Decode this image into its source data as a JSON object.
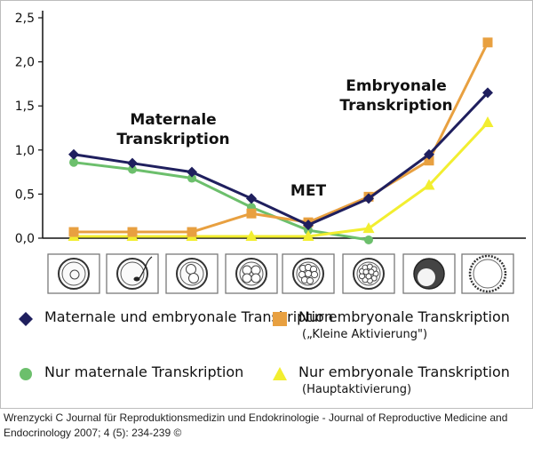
{
  "chart_data": {
    "type": "line",
    "x": [
      1,
      2,
      3,
      4,
      5,
      6,
      7,
      8
    ],
    "ylim": [
      0,
      2.5
    ],
    "yticks": [
      "0,0",
      "0,5",
      "1,0",
      "1,5",
      "2,0",
      "2,5"
    ],
    "ytick_values": [
      0,
      0.5,
      1,
      1.5,
      2,
      2.5
    ],
    "series": [
      {
        "name": "Maternale und embryonale Transkription",
        "marker": "diamond",
        "color": "#1f1f5e",
        "values": [
          0.95,
          0.85,
          0.75,
          0.45,
          0.15,
          0.45,
          0.95,
          1.65
        ]
      },
      {
        "name": "Nur embryonale Transkription",
        "note": "(„Kleine Aktivierung\")",
        "marker": "square",
        "color": "#e8a040",
        "values": [
          0.07,
          0.07,
          0.07,
          0.28,
          0.18,
          0.47,
          0.88,
          2.22
        ]
      },
      {
        "name": "Nur maternale Transkription",
        "marker": "circle",
        "color": "#6cbf6c",
        "values": [
          0.86,
          0.78,
          0.68,
          0.35,
          0.09,
          -0.02,
          null,
          null
        ]
      },
      {
        "name": "Nur embryonale Transkription",
        "note": "(Hauptaktivierung)",
        "marker": "triangle",
        "color": "#f2ee30",
        "values": [
          0.02,
          0.02,
          0.02,
          0.02,
          0.02,
          0.11,
          0.6,
          1.31
        ]
      }
    ],
    "annotations": [
      {
        "text_lines": [
          "Maternale",
          "Transkription"
        ]
      },
      {
        "text_lines": [
          "MET"
        ]
      },
      {
        "text_lines": [
          "Embryonale",
          "Transkription"
        ]
      }
    ],
    "stage_icons": [
      "zygote",
      "zygote-sperm",
      "two-cell",
      "four-cell",
      "eight-cell",
      "morula",
      "blastocyst",
      "expanded-blastocyst"
    ],
    "grid": false
  },
  "caption": {
    "text": "Wrenzycki C Journal für Reproduktionsmedizin und Endokrinologie - Journal of Reproductive Medicine and Endocrinology 2007; 4 (5): 234-239 ©"
  }
}
